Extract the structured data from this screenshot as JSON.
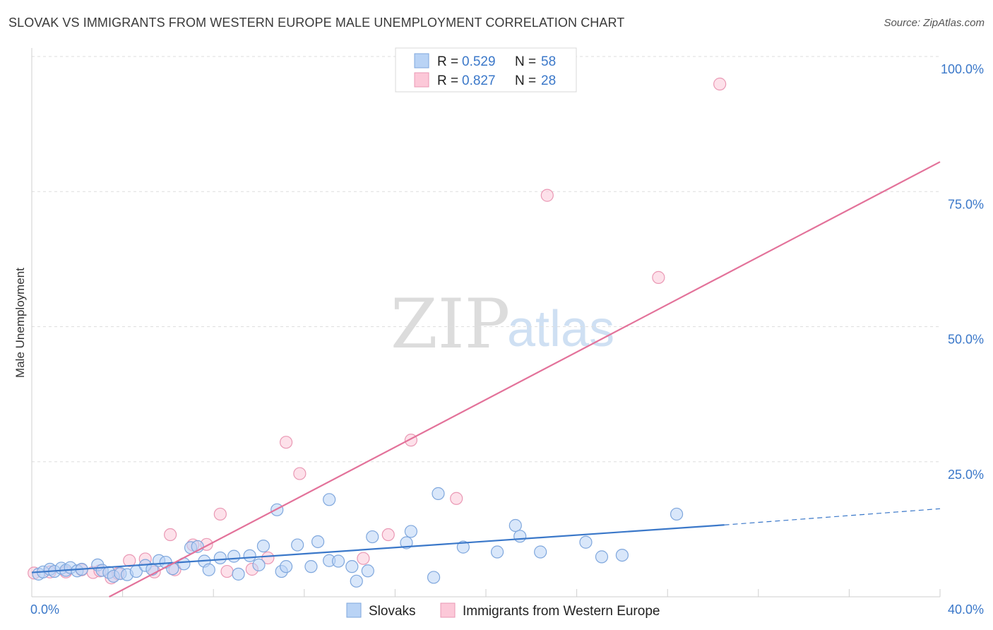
{
  "header": {
    "title": "SLOVAK VS IMMIGRANTS FROM WESTERN EUROPE MALE UNEMPLOYMENT CORRELATION CHART",
    "source": "Source: ZipAtlas.com"
  },
  "watermark": {
    "zip": "ZIP",
    "atlas": "atlas"
  },
  "legend": {
    "rows": [
      {
        "r_label": "R =",
        "r_value": "0.529",
        "n_label": "N =",
        "n_value": "58",
        "fill": "#b9d3f5",
        "stroke": "#7fa7dd"
      },
      {
        "r_label": "R =",
        "r_value": "0.827",
        "n_label": "N =",
        "n_value": "28",
        "fill": "#fcc8d8",
        "stroke": "#ea98b4"
      }
    ]
  },
  "bottom_legend": [
    {
      "label": "Slovaks",
      "fill": "#b9d3f5",
      "stroke": "#7fa7dd"
    },
    {
      "label": "Immigrants from Western Europe",
      "fill": "#fcc8d8",
      "stroke": "#ea98b4"
    }
  ],
  "chart_data": {
    "type": "scatter",
    "title": "SLOVAK VS IMMIGRANTS FROM WESTERN EUROPE MALE UNEMPLOYMENT CORRELATION CHART",
    "xlabel": "",
    "ylabel": "Male Unemployment",
    "xlim": [
      0,
      40
    ],
    "ylim": [
      0,
      100
    ],
    "x_tick_labels": [
      {
        "value": 0,
        "label": "0.0%"
      },
      {
        "value": 40,
        "label": "40.0%"
      }
    ],
    "y_tick_labels": [
      {
        "value": 25,
        "label": "25.0%"
      },
      {
        "value": 50,
        "label": "50.0%"
      },
      {
        "value": 75,
        "label": "75.0%"
      },
      {
        "value": 100,
        "label": "100.0%"
      }
    ],
    "grid": true,
    "colors": {
      "slovaks": "#3b78c9",
      "immigrants": "#e3729a"
    },
    "series": [
      {
        "name": "Slovaks",
        "color": "#3b78c9",
        "points": [
          [
            0.3,
            4.2
          ],
          [
            0.5,
            4.6
          ],
          [
            0.8,
            5.1
          ],
          [
            1.0,
            4.7
          ],
          [
            1.3,
            5.3
          ],
          [
            1.5,
            4.9
          ],
          [
            1.7,
            5.4
          ],
          [
            2.0,
            4.8
          ],
          [
            2.2,
            5.1
          ],
          [
            2.9,
            5.9
          ],
          [
            3.1,
            4.9
          ],
          [
            3.4,
            4.5
          ],
          [
            3.6,
            3.8
          ],
          [
            3.9,
            4.3
          ],
          [
            4.2,
            4.1
          ],
          [
            4.6,
            4.7
          ],
          [
            5.0,
            5.8
          ],
          [
            5.3,
            5.1
          ],
          [
            5.6,
            6.7
          ],
          [
            5.9,
            6.4
          ],
          [
            6.2,
            5.2
          ],
          [
            6.7,
            6.1
          ],
          [
            7.0,
            9.1
          ],
          [
            7.3,
            9.3
          ],
          [
            7.6,
            6.6
          ],
          [
            7.8,
            5.0
          ],
          [
            8.3,
            7.2
          ],
          [
            8.9,
            7.5
          ],
          [
            9.1,
            4.2
          ],
          [
            9.6,
            7.6
          ],
          [
            10.0,
            5.9
          ],
          [
            10.2,
            9.4
          ],
          [
            10.8,
            16.1
          ],
          [
            11.0,
            4.7
          ],
          [
            11.2,
            5.6
          ],
          [
            11.7,
            9.6
          ],
          [
            12.3,
            5.6
          ],
          [
            12.6,
            10.2
          ],
          [
            13.1,
            18.0
          ],
          [
            13.1,
            6.7
          ],
          [
            13.5,
            6.6
          ],
          [
            14.1,
            5.6
          ],
          [
            14.3,
            2.9
          ],
          [
            14.8,
            4.8
          ],
          [
            15.0,
            11.1
          ],
          [
            16.5,
            10.0
          ],
          [
            16.7,
            12.1
          ],
          [
            17.7,
            3.6
          ],
          [
            17.9,
            19.1
          ],
          [
            19.0,
            9.2
          ],
          [
            20.5,
            8.3
          ],
          [
            21.3,
            13.2
          ],
          [
            21.5,
            11.2
          ],
          [
            22.4,
            8.3
          ],
          [
            24.4,
            10.1
          ],
          [
            25.1,
            7.4
          ],
          [
            26.0,
            7.7
          ],
          [
            28.4,
            15.3
          ]
        ],
        "trend": {
          "x0": 0,
          "y0": 4.5,
          "x1": 30.5,
          "y1": 13.3,
          "dash_to_x": 40,
          "dash_to_y": 16.3
        }
      },
      {
        "name": "Immigrants from Western Europe",
        "color": "#e3729a",
        "points": [
          [
            0.1,
            4.4
          ],
          [
            0.8,
            4.6
          ],
          [
            1.5,
            4.6
          ],
          [
            2.2,
            5.0
          ],
          [
            2.7,
            4.5
          ],
          [
            3.0,
            4.8
          ],
          [
            3.5,
            3.5
          ],
          [
            3.8,
            4.3
          ],
          [
            4.3,
            6.7
          ],
          [
            5.0,
            7.0
          ],
          [
            5.4,
            4.6
          ],
          [
            6.1,
            11.5
          ],
          [
            6.3,
            5.0
          ],
          [
            7.1,
            9.6
          ],
          [
            7.7,
            9.7
          ],
          [
            8.3,
            15.3
          ],
          [
            8.6,
            4.7
          ],
          [
            9.7,
            5.1
          ],
          [
            10.4,
            7.2
          ],
          [
            11.2,
            28.6
          ],
          [
            11.8,
            22.8
          ],
          [
            14.6,
            7.1
          ],
          [
            15.7,
            11.5
          ],
          [
            16.7,
            29.0
          ],
          [
            18.7,
            18.2
          ],
          [
            22.7,
            74.3
          ],
          [
            27.6,
            59.1
          ],
          [
            30.3,
            94.9
          ]
        ],
        "trend": {
          "x0": 0,
          "y0": -7.5,
          "x1": 40,
          "y1": 80.5
        }
      }
    ]
  }
}
